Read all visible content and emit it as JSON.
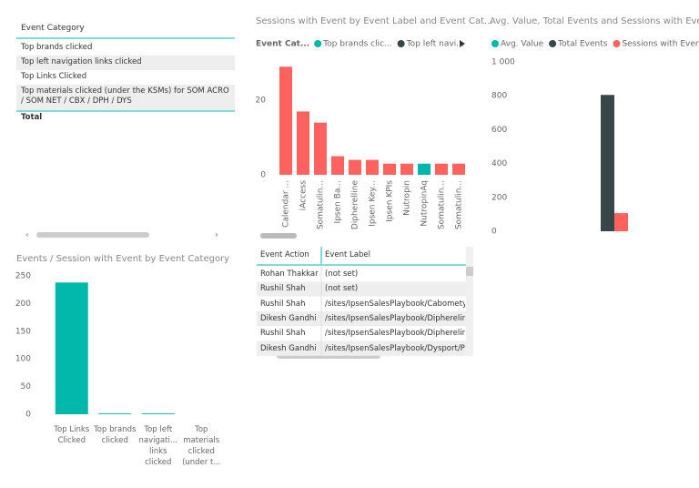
{
  "chart_data": [
    {
      "type": "bar",
      "title": "Sessions with Event by Event Label and Event Cat...",
      "legend_title": "Event Cat...",
      "legend": [
        {
          "name": "Top brands clic...",
          "color": "#01B8AA"
        },
        {
          "name": "Top left navi...",
          "color": "#374649"
        }
      ],
      "categories": [
        "Calendar ...",
        "iAccess",
        "Somatulin...",
        "Ipsen Ba...",
        "Dipherelline",
        "Ipsen Key...",
        "Ipsen KPIs",
        "Nutropin",
        "NutropinAq",
        "Somatulin...",
        "Somatulin..."
      ],
      "values": [
        29,
        17,
        14,
        5,
        4,
        4,
        3,
        3,
        3,
        3,
        3
      ],
      "colors": [
        "#FD625E",
        "#FD625E",
        "#FD625E",
        "#FD625E",
        "#FD625E",
        "#FD625E",
        "#FD625E",
        "#FD625E",
        "#01B8AA",
        "#FD625E",
        "#FD625E"
      ],
      "ylim": [
        0,
        32
      ],
      "yticks": [
        0,
        20
      ]
    },
    {
      "type": "grouped_bar",
      "title": "Avg. Value, Total Events and Sessions with Event",
      "categories": [
        null
      ],
      "series": [
        {
          "name": "Avg. Value",
          "color": "#01B8AA",
          "values": [
            0
          ]
        },
        {
          "name": "Total Events",
          "color": "#374649",
          "values": [
            805
          ]
        },
        {
          "name": "Sessions with Event",
          "color": "#FD625E",
          "values": [
            107
          ]
        }
      ],
      "ylim": [
        0,
        1000
      ],
      "yticks": [
        0,
        200,
        400,
        600,
        800,
        {
          "value": 1000,
          "label": "1 000"
        }
      ]
    },
    {
      "type": "bar",
      "title": "Events / Session with Event by Event Category",
      "categories": [
        "Top Links Clicked",
        "Top brands clicked",
        "Top left navigati... links clicked",
        "Top materials clicked (under t..."
      ],
      "values": [
        238,
        1.5,
        1.5,
        0
      ],
      "color": "#01B8AA",
      "ylim": [
        0,
        250
      ],
      "yticks": [
        0,
        50,
        100,
        150,
        200,
        250
      ]
    }
  ],
  "category_table": {
    "header": "Event Category",
    "rows": [
      "Top brands clicked",
      "Top left navigation links clicked",
      "Top Links Clicked",
      "Top materials clicked (under the KSMs) for SOM ACRO / SOM NET / CBX / DPH / DYS"
    ],
    "total": "Total"
  },
  "action_table": {
    "headers": [
      "Event Action",
      "Event Label"
    ],
    "rows": [
      [
        "Rohan Thakkar",
        "(not set)"
      ],
      [
        "Rushil Shah",
        "(not set)"
      ],
      [
        "Rushil Shah",
        "/sites/IpsenSalesPlaybook/Cabomety"
      ],
      [
        "Dikesh Gandhi",
        "/sites/IpsenSalesPlaybook/Dipherelin"
      ],
      [
        "Rushil Shah",
        "/sites/IpsenSalesPlaybook/Dipherelin"
      ],
      [
        "Dikesh Gandhi",
        "/sites/IpsenSalesPlaybook/Dysport/P"
      ]
    ]
  }
}
